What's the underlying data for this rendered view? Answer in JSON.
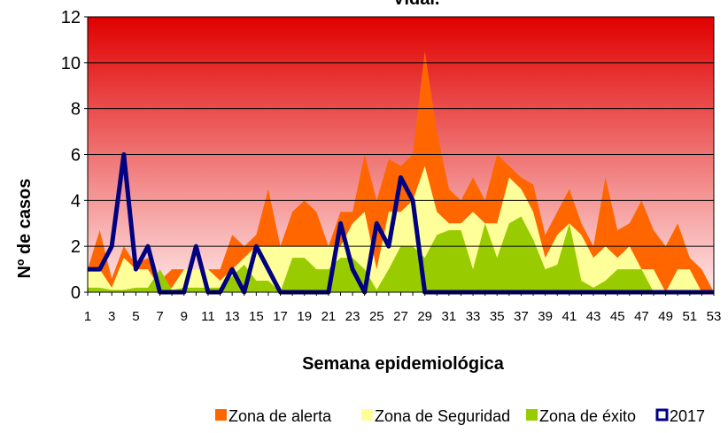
{
  "chart_data": {
    "type": "area",
    "title": "Vidal.",
    "ylabel": "Nº de casos",
    "xlabel": "Semana epidemiológica",
    "categories": [
      "1",
      null,
      "3",
      null,
      "5",
      null,
      "7",
      null,
      "9",
      null,
      "11",
      null,
      "13",
      null,
      "15",
      null,
      "17",
      null,
      "19",
      null,
      "21",
      null,
      "23",
      null,
      "25",
      null,
      "27",
      null,
      "29",
      null,
      "31",
      null,
      "33",
      null,
      "35",
      null,
      "37",
      null,
      "39",
      null,
      "41",
      null,
      "43",
      null,
      "45",
      null,
      "47",
      null,
      "49",
      null,
      "51",
      null,
      "53"
    ],
    "ylim": [
      0,
      12
    ],
    "yticks": [
      0,
      2,
      4,
      6,
      8,
      10,
      12
    ],
    "grid": true,
    "legend": "bottom",
    "series": [
      {
        "name": "Zona de alerta",
        "color": "#ff6600",
        "kind": "area",
        "values": [
          1,
          2.7,
          0.6,
          2,
          1.2,
          1.5,
          0.5,
          1,
          1,
          1,
          1,
          1,
          2.5,
          2,
          2.5,
          4.5,
          2,
          3.5,
          4,
          3.5,
          2,
          3.5,
          3.5,
          6,
          4,
          5.8,
          5.5,
          6,
          10.5,
          7,
          4.5,
          4,
          5,
          4,
          6,
          5.5,
          5,
          4.7,
          2.5,
          3.5,
          4.5,
          3,
          2,
          5,
          2.7,
          3,
          4,
          2.7,
          2,
          3,
          1.5,
          1,
          0
        ]
      },
      {
        "name": "Zona de Seguridad",
        "color": "#ffff99",
        "kind": "area",
        "values": [
          1,
          1,
          0.2,
          1.5,
          1,
          1,
          0.2,
          0.2,
          1,
          1,
          1,
          0.5,
          1,
          1.5,
          2,
          2,
          2,
          2,
          2,
          2,
          2,
          2,
          3,
          3.5,
          1,
          3.5,
          3.5,
          4,
          5.5,
          3.5,
          3,
          3,
          3.5,
          3,
          3,
          5,
          4.5,
          3.5,
          1.5,
          2.5,
          3,
          2.5,
          1.5,
          2,
          1.5,
          2,
          1,
          1,
          0,
          1,
          1,
          0,
          0
        ]
      },
      {
        "name": "Zona de éxito",
        "color": "#99cc00",
        "kind": "area",
        "values": [
          0.2,
          0.2,
          0.1,
          0.1,
          0.2,
          0.2,
          1,
          0.1,
          0.2,
          0.2,
          0.2,
          0.2,
          0.7,
          1.2,
          0.5,
          0.5,
          0,
          1.5,
          1.5,
          1,
          1,
          1.5,
          1.5,
          1,
          0.1,
          1,
          2,
          2,
          1.5,
          2.5,
          2.7,
          2.7,
          1,
          3,
          1.5,
          3,
          3.3,
          2.3,
          1,
          1.2,
          3,
          0.5,
          0.2,
          0.5,
          1,
          1,
          1,
          0,
          0,
          0,
          0,
          0,
          0
        ]
      },
      {
        "name": "2017",
        "color": "#000080",
        "kind": "line",
        "values": [
          1,
          1,
          2,
          6,
          1,
          2,
          0,
          0,
          0,
          2,
          0,
          0,
          1,
          0,
          2,
          1,
          0,
          0,
          0,
          0,
          0,
          3,
          1,
          0,
          3,
          2,
          5,
          4,
          0,
          0,
          0,
          0,
          0,
          0,
          0,
          0,
          0,
          0,
          0,
          0,
          0,
          0,
          0,
          0,
          0,
          0,
          0,
          0,
          0,
          0,
          0,
          0,
          0
        ]
      }
    ]
  }
}
